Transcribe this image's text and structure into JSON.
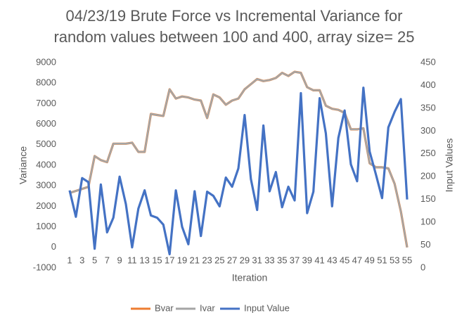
{
  "chart_data": {
    "type": "line",
    "title": "04/23/19 Brute Force vs Incremental Variance for random values between 100 and 400, array size= 25",
    "x_label": "Iteration",
    "y_label": "Variance",
    "y2_label": "Input Values",
    "categories": [
      1,
      null,
      3,
      null,
      5,
      null,
      7,
      null,
      9,
      null,
      11,
      null,
      13,
      null,
      15,
      null,
      17,
      null,
      19,
      null,
      21,
      null,
      23,
      null,
      25,
      null,
      27,
      null,
      29,
      null,
      31,
      null,
      33,
      null,
      35,
      null,
      37,
      null,
      39,
      null,
      41,
      null,
      43,
      null,
      45,
      null,
      47,
      null,
      49,
      null,
      51,
      null,
      53,
      null,
      55
    ],
    "series": [
      {
        "name": "Bvar",
        "color": "#ed7d31",
        "values": [
          2650,
          2750,
          2850,
          2950,
          4450,
          4250,
          4150,
          5050,
          5050,
          5050,
          5100,
          4650,
          4650,
          6500,
          6450,
          6400,
          7700,
          7250,
          7350,
          7300,
          7200,
          7150,
          6300,
          7450,
          7300,
          6950,
          7150,
          7250,
          7700,
          7950,
          8200,
          8100,
          8150,
          8250,
          8500,
          8350,
          8550,
          8500,
          7800,
          7650,
          7650,
          6900,
          6750,
          6700,
          6550,
          5750,
          5750,
          5800,
          4100,
          3900,
          3900,
          3850,
          3100,
          1750,
          0
        ]
      },
      {
        "name": "Ivar",
        "color": "#a5a5a5",
        "values": [
          2650,
          2750,
          2850,
          2950,
          4450,
          4250,
          4150,
          5050,
          5050,
          5050,
          5100,
          4650,
          4650,
          6500,
          6450,
          6400,
          7700,
          7250,
          7350,
          7300,
          7200,
          7150,
          6300,
          7450,
          7300,
          6950,
          7150,
          7250,
          7700,
          7950,
          8200,
          8100,
          8150,
          8250,
          8500,
          8350,
          8550,
          8500,
          7800,
          7650,
          7650,
          6900,
          6750,
          6700,
          6550,
          5750,
          5750,
          5800,
          4100,
          3900,
          3900,
          3850,
          3100,
          1750,
          0
        ]
      },
      {
        "name": "Input Value",
        "color": "#4472c4",
        "axis": "y2",
        "values": [
          170,
          112,
          197,
          188,
          42,
          183,
          78,
          110,
          200,
          140,
          45,
          130,
          170,
          115,
          110,
          95,
          30,
          170,
          90,
          52,
          168,
          70,
          167,
          158,
          135,
          198,
          178,
          218,
          335,
          195,
          127,
          312,
          168,
          210,
          133,
          178,
          148,
          383,
          120,
          167,
          372,
          295,
          135,
          285,
          345,
          227,
          190,
          395,
          255,
          205,
          153,
          308,
          342,
          370,
          150
        ]
      }
    ],
    "ylim": [
      -1000,
      9000
    ],
    "yticks": [
      -1000,
      0,
      1000,
      2000,
      3000,
      4000,
      5000,
      6000,
      7000,
      8000,
      9000
    ],
    "y2lim": [
      0,
      450
    ],
    "y2ticks": [
      0,
      50,
      100,
      150,
      200,
      250,
      300,
      350,
      400,
      450
    ],
    "legend": "bottom"
  }
}
